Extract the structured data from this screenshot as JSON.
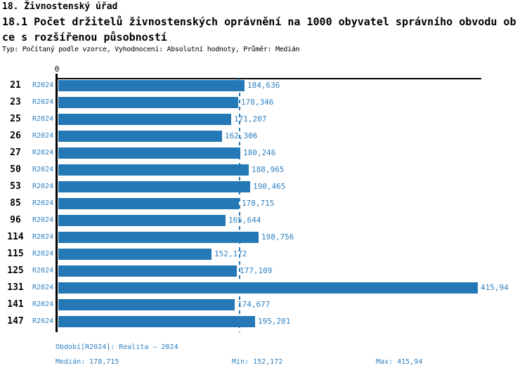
{
  "header": {
    "title": "18. Živnostenský úřad",
    "subtitle_lines": [
      "18.1 Počet držitelů živnostenských oprávnění na 1000 obyvatel správního obvodu ob",
      "ce s rozšířenou působností"
    ],
    "meta": "Typ: Počítaný podle vzorce, Vyhodnocení: Absolutní hodnoty, Průměr: Medián"
  },
  "chart_data": {
    "type": "bar",
    "orientation": "horizontal",
    "title": "Počet držitelů živnostenských oprávnění na 1000 obyvatel správního obvodu obce s rozšířenou působností",
    "origin_tick_label": "0",
    "series_label": "R2024",
    "categories": [
      "21",
      "23",
      "25",
      "26",
      "27",
      "50",
      "53",
      "85",
      "96",
      "114",
      "115",
      "125",
      "131",
      "141",
      "147"
    ],
    "values": [
      184.636,
      178.346,
      171.207,
      162.306,
      180.246,
      188.965,
      190.465,
      178.715,
      165.644,
      198.756,
      152.172,
      177.109,
      415.94,
      174.677,
      195.201
    ],
    "value_labels": [
      "184,636",
      "178,346",
      "171,207",
      "162,306",
      "180,246",
      "188,965",
      "190,465",
      "178,715",
      "165,644",
      "198,756",
      "152,172",
      "177,109",
      "415,94",
      "174,677",
      "195,201"
    ],
    "xlim": [
      0,
      420
    ],
    "grid": false,
    "legend_position": "none",
    "median_line": {
      "style": "dashed",
      "value": 178.715
    },
    "bar_color": "#2478b5",
    "text_color": "#2e80c0",
    "axis_color": "#000000"
  },
  "footer": {
    "period": "Období[R2024]: Realita – 2024",
    "median": "Medián: 178,715",
    "min": "Min: 152,172",
    "max": "Max: 415,94"
  }
}
